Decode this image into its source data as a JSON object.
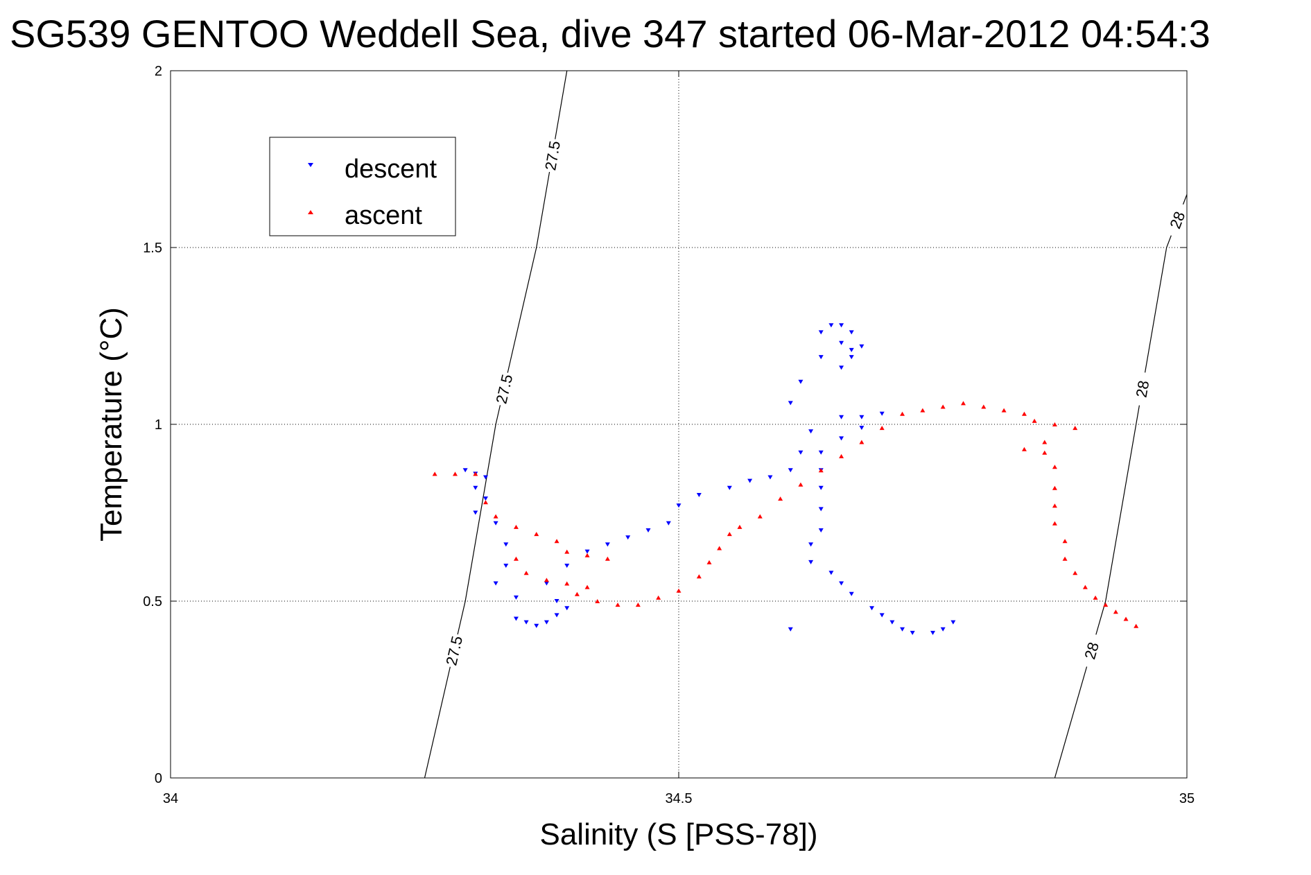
{
  "chart_data": {
    "type": "scatter",
    "title": "SG539 GENTOO Weddell Sea, dive 347 started 06-Mar-2012 04:54:3",
    "xlabel": "Salinity (S [PSS-78])",
    "ylabel": "Temperature (°C)",
    "xlim": [
      34,
      35
    ],
    "ylim": [
      0,
      2
    ],
    "xticks": [
      "34",
      "34.5",
      "35"
    ],
    "yticks": [
      "0",
      "0.5",
      "1",
      "1.5",
      "2"
    ],
    "grid": true,
    "legend": {
      "placement": "top-left"
    },
    "series": [
      {
        "name": "descent",
        "color": "#0000ff",
        "marker": "triangle-down",
        "points": [
          [
            34.29,
            0.87
          ],
          [
            34.3,
            0.86
          ],
          [
            34.31,
            0.85
          ],
          [
            34.3,
            0.82
          ],
          [
            34.31,
            0.79
          ],
          [
            34.3,
            0.75
          ],
          [
            34.32,
            0.72
          ],
          [
            34.33,
            0.66
          ],
          [
            34.33,
            0.6
          ],
          [
            34.32,
            0.55
          ],
          [
            34.34,
            0.51
          ],
          [
            34.34,
            0.45
          ],
          [
            34.35,
            0.44
          ],
          [
            34.36,
            0.43
          ],
          [
            34.37,
            0.44
          ],
          [
            34.38,
            0.46
          ],
          [
            34.39,
            0.48
          ],
          [
            34.38,
            0.5
          ],
          [
            34.37,
            0.55
          ],
          [
            34.39,
            0.6
          ],
          [
            34.41,
            0.64
          ],
          [
            34.43,
            0.66
          ],
          [
            34.45,
            0.68
          ],
          [
            34.47,
            0.7
          ],
          [
            34.49,
            0.72
          ],
          [
            34.5,
            0.77
          ],
          [
            34.52,
            0.8
          ],
          [
            34.55,
            0.82
          ],
          [
            34.57,
            0.84
          ],
          [
            34.59,
            0.85
          ],
          [
            34.61,
            0.87
          ],
          [
            34.62,
            0.92
          ],
          [
            34.63,
            0.98
          ],
          [
            34.61,
            1.06
          ],
          [
            34.62,
            1.12
          ],
          [
            34.64,
            1.19
          ],
          [
            34.64,
            1.26
          ],
          [
            34.65,
            1.28
          ],
          [
            34.66,
            1.28
          ],
          [
            34.67,
            1.26
          ],
          [
            34.66,
            1.23
          ],
          [
            34.67,
            1.21
          ],
          [
            34.68,
            1.22
          ],
          [
            34.67,
            1.19
          ],
          [
            34.66,
            1.16
          ],
          [
            34.66,
            1.02
          ],
          [
            34.68,
            1.02
          ],
          [
            34.7,
            1.03
          ],
          [
            34.68,
            0.99
          ],
          [
            34.66,
            0.96
          ],
          [
            34.64,
            0.92
          ],
          [
            34.64,
            0.87
          ],
          [
            34.64,
            0.82
          ],
          [
            34.64,
            0.76
          ],
          [
            34.64,
            0.7
          ],
          [
            34.63,
            0.66
          ],
          [
            34.63,
            0.61
          ],
          [
            34.65,
            0.58
          ],
          [
            34.66,
            0.55
          ],
          [
            34.67,
            0.52
          ],
          [
            34.69,
            0.48
          ],
          [
            34.7,
            0.46
          ],
          [
            34.71,
            0.44
          ],
          [
            34.72,
            0.42
          ],
          [
            34.73,
            0.41
          ],
          [
            34.75,
            0.41
          ],
          [
            34.76,
            0.42
          ],
          [
            34.77,
            0.44
          ],
          [
            34.61,
            0.42
          ]
        ]
      },
      {
        "name": "ascent",
        "color": "#ff0000",
        "marker": "triangle-up",
        "points": [
          [
            34.26,
            0.86
          ],
          [
            34.28,
            0.86
          ],
          [
            34.3,
            0.86
          ],
          [
            34.31,
            0.78
          ],
          [
            34.32,
            0.74
          ],
          [
            34.34,
            0.71
          ],
          [
            34.36,
            0.69
          ],
          [
            34.38,
            0.67
          ],
          [
            34.39,
            0.64
          ],
          [
            34.41,
            0.63
          ],
          [
            34.43,
            0.62
          ],
          [
            34.34,
            0.62
          ],
          [
            34.35,
            0.58
          ],
          [
            34.37,
            0.56
          ],
          [
            34.39,
            0.55
          ],
          [
            34.41,
            0.54
          ],
          [
            34.4,
            0.52
          ],
          [
            34.42,
            0.5
          ],
          [
            34.44,
            0.49
          ],
          [
            34.46,
            0.49
          ],
          [
            34.48,
            0.51
          ],
          [
            34.5,
            0.53
          ],
          [
            34.52,
            0.57
          ],
          [
            34.53,
            0.61
          ],
          [
            34.54,
            0.65
          ],
          [
            34.55,
            0.69
          ],
          [
            34.56,
            0.71
          ],
          [
            34.58,
            0.74
          ],
          [
            34.6,
            0.79
          ],
          [
            34.62,
            0.83
          ],
          [
            34.64,
            0.87
          ],
          [
            34.66,
            0.91
          ],
          [
            34.68,
            0.95
          ],
          [
            34.7,
            0.99
          ],
          [
            34.72,
            1.03
          ],
          [
            34.74,
            1.04
          ],
          [
            34.76,
            1.05
          ],
          [
            34.78,
            1.06
          ],
          [
            34.8,
            1.05
          ],
          [
            34.82,
            1.04
          ],
          [
            34.84,
            1.03
          ],
          [
            34.85,
            1.01
          ],
          [
            34.87,
            1.0
          ],
          [
            34.89,
            0.99
          ],
          [
            34.86,
            0.95
          ],
          [
            34.84,
            0.93
          ],
          [
            34.86,
            0.92
          ],
          [
            34.87,
            0.88
          ],
          [
            34.87,
            0.82
          ],
          [
            34.87,
            0.77
          ],
          [
            34.87,
            0.72
          ],
          [
            34.88,
            0.67
          ],
          [
            34.88,
            0.62
          ],
          [
            34.89,
            0.58
          ],
          [
            34.9,
            0.54
          ],
          [
            34.91,
            0.51
          ],
          [
            34.92,
            0.49
          ],
          [
            34.93,
            0.47
          ],
          [
            34.94,
            0.45
          ],
          [
            34.95,
            0.43
          ]
        ]
      }
    ],
    "isopycnals": [
      {
        "label": "27.5",
        "points": [
          [
            34.25,
            0.0
          ],
          [
            34.29,
            0.5
          ],
          [
            34.32,
            1.0
          ],
          [
            34.36,
            1.5
          ],
          [
            34.39,
            2.0
          ]
        ]
      },
      {
        "label": "28",
        "points": [
          [
            34.87,
            0.0
          ],
          [
            34.92,
            0.5
          ],
          [
            34.95,
            1.0
          ],
          [
            34.98,
            1.5
          ],
          [
            35.0,
            1.65
          ]
        ]
      }
    ]
  }
}
